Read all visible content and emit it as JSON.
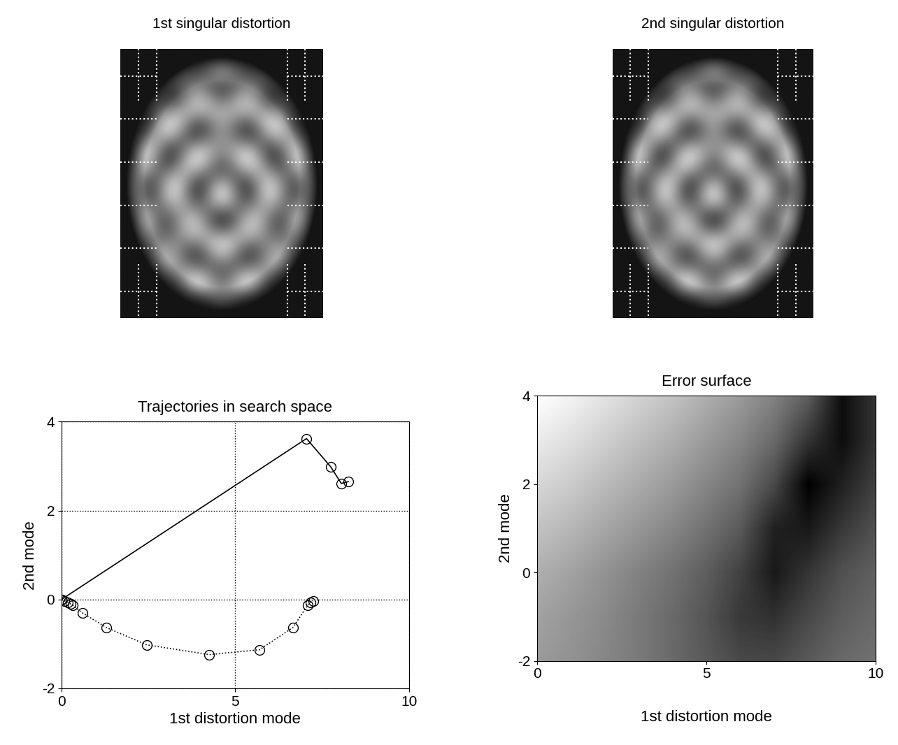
{
  "chart_data": [
    {
      "type": "image",
      "title": "1st singular distortion",
      "tick_labels": false
    },
    {
      "type": "image",
      "title": "2nd singular distortion",
      "tick_labels": false
    },
    {
      "type": "line",
      "title": "Trajectories in search space",
      "xlabel": "1st distortion mode",
      "ylabel": "2nd mode",
      "xlim": [
        0,
        10
      ],
      "ylim": [
        -2,
        4
      ],
      "xticks": [
        0,
        5,
        10
      ],
      "yticks": [
        -2,
        0,
        2,
        4
      ],
      "grid": true,
      "series": [
        {
          "color": "#000000",
          "line_style": "solid",
          "marker": "circle",
          "x": [
            0,
            7.05,
            7.75,
            8.05,
            8.25
          ],
          "values": [
            0,
            3.62,
            2.98,
            2.61,
            2.65
          ]
        },
        {
          "color": "#000000",
          "line_style": "dotted",
          "marker": "circle",
          "x": [
            0,
            0.08,
            0.18,
            0.26,
            0.32,
            0.6,
            1.29,
            2.45,
            4.25,
            5.7,
            6.66,
            7.08,
            7.16,
            7.24
          ],
          "values": [
            0,
            -0.03,
            -0.06,
            -0.1,
            -0.13,
            -0.3,
            -0.63,
            -1.02,
            -1.24,
            -1.13,
            -0.63,
            -0.13,
            -0.06,
            -0.03
          ]
        }
      ]
    },
    {
      "type": "heatmap",
      "title": "Error surface",
      "xlabel": "1st distortion mode",
      "ylabel": "2nd mode",
      "xlim": [
        0,
        10
      ],
      "ylim": [
        -2,
        4
      ],
      "xticks": [
        0,
        5,
        10
      ],
      "yticks": [
        -2,
        0,
        2,
        4
      ],
      "cell_x": [
        0,
        1,
        2,
        3,
        4,
        5,
        6,
        7,
        8,
        9,
        10
      ],
      "cell_y": [
        -2,
        -1,
        0,
        1,
        2,
        3,
        4
      ],
      "cells": [
        [
          0.7,
          0.68,
          0.65,
          0.62,
          0.58,
          0.54,
          0.5,
          0.5,
          0.54,
          0.58,
          0.6
        ],
        [
          0.72,
          0.69,
          0.66,
          0.62,
          0.58,
          0.53,
          0.46,
          0.44,
          0.5,
          0.55,
          0.58
        ],
        [
          0.75,
          0.72,
          0.68,
          0.64,
          0.6,
          0.55,
          0.48,
          0.38,
          0.45,
          0.52,
          0.56
        ],
        [
          0.8,
          0.77,
          0.73,
          0.69,
          0.65,
          0.6,
          0.54,
          0.4,
          0.38,
          0.46,
          0.52
        ],
        [
          0.85,
          0.82,
          0.78,
          0.74,
          0.7,
          0.65,
          0.6,
          0.5,
          0.32,
          0.4,
          0.48
        ],
        [
          0.9,
          0.87,
          0.83,
          0.79,
          0.75,
          0.7,
          0.65,
          0.58,
          0.45,
          0.35,
          0.45
        ],
        [
          0.95,
          0.92,
          0.88,
          0.84,
          0.8,
          0.75,
          0.7,
          0.64,
          0.55,
          0.35,
          0.45
        ]
      ]
    }
  ]
}
